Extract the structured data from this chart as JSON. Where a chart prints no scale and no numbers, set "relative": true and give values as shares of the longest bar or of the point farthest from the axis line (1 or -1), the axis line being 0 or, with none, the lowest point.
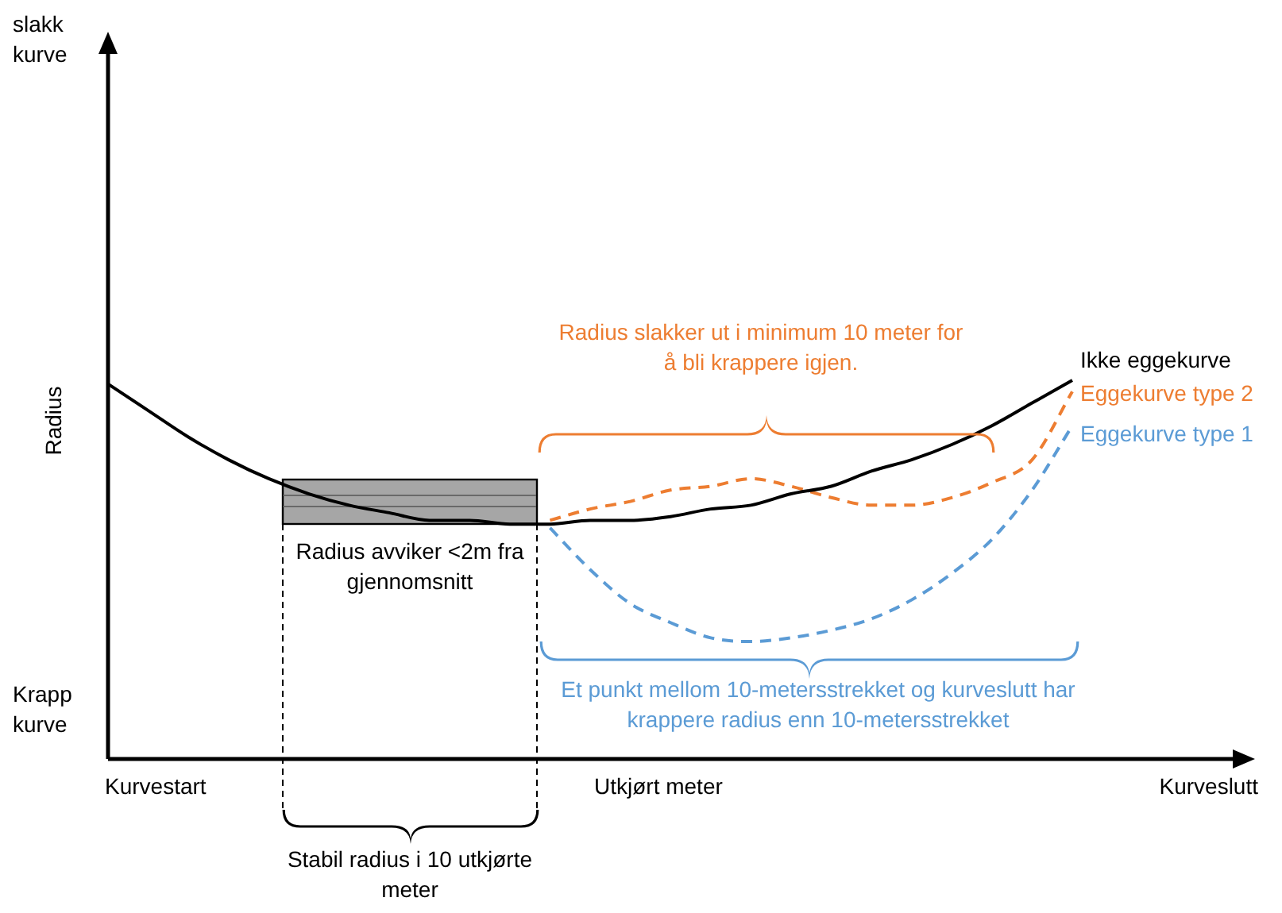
{
  "chart_data": {
    "type": "line",
    "relative": true,
    "xlabel": "Utkjørt meter",
    "ylabel": "Radius",
    "legend": false,
    "marker": "none",
    "categories": [
      null,
      null,
      null,
      null,
      null,
      null,
      null,
      null,
      null,
      null,
      null,
      null,
      null,
      null,
      null,
      null,
      null,
      null,
      null,
      null,
      null,
      null,
      null,
      null,
      null
    ],
    "series": [
      {
        "name": "Ikke eggekurve",
        "color": "#000000",
        "line_style": "solid",
        "values": [
          0.99,
          0.92,
          0.85,
          0.79,
          0.74,
          0.7,
          0.67,
          0.65,
          0.63,
          0.63,
          0.62,
          0.62,
          0.63,
          0.63,
          0.64,
          0.66,
          0.67,
          0.7,
          0.72,
          0.76,
          0.79,
          0.83,
          0.88,
          0.94,
          1.0
        ]
      },
      {
        "name": "Eggekurve type 2",
        "color": "#ed7d31",
        "line_style": "dashed",
        "values": [
          null,
          null,
          null,
          null,
          null,
          null,
          null,
          null,
          null,
          null,
          null,
          0.63,
          0.66,
          0.68,
          0.71,
          0.72,
          0.74,
          0.72,
          0.69,
          0.67,
          0.67,
          0.69,
          0.73,
          0.79,
          0.97
        ]
      },
      {
        "name": "Eggekurve type 1",
        "color": "#5b9bd5",
        "line_style": "dashed",
        "values": [
          null,
          null,
          null,
          null,
          null,
          null,
          null,
          null,
          null,
          null,
          null,
          0.61,
          0.5,
          0.41,
          0.36,
          0.32,
          0.31,
          0.32,
          0.34,
          0.37,
          0.42,
          0.49,
          0.58,
          0.71,
          0.88
        ]
      }
    ],
    "annotations": [
      "slakk kurve",
      "Krapp kurve",
      "Kurvestart",
      "Kurveslutt",
      "Radius slakker ut i minimum 10 meter for å bli krappere igjen.",
      "Radius avviker <2m fra gjennomsnitt",
      "Et punkt mellom 10-metersstrekket og kurveslutt har krappere radius enn 10-metersstrekket",
      "Stabil radius i 10 utkjørte meter"
    ]
  }
}
